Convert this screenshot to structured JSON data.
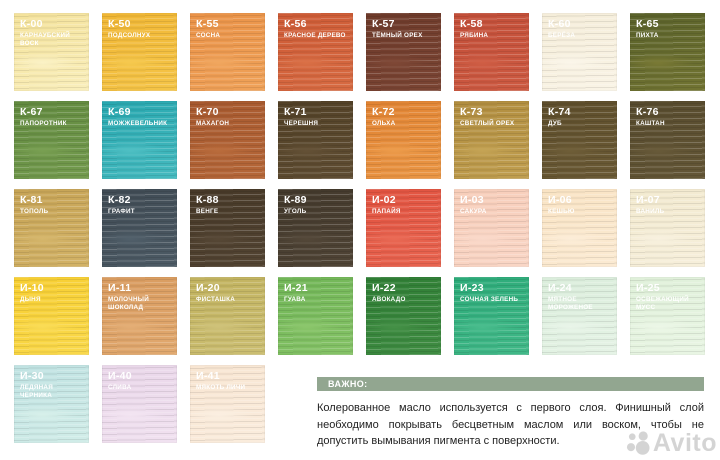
{
  "palette": {
    "swatches": [
      {
        "code": "К-00",
        "name": "КАРНАУБСКИЙ ВОСК",
        "base": "#F4E29A",
        "light": "#FBF2C6"
      },
      {
        "code": "К-50",
        "name": "ПОДСОЛНУХ",
        "base": "#F0B634",
        "light": "#F6C94E"
      },
      {
        "code": "К-55",
        "name": "СОСНА",
        "base": "#EA9247",
        "light": "#F1A75F"
      },
      {
        "code": "К-56",
        "name": "КРАСНОЕ ДЕРЕВО",
        "base": "#CD5A35",
        "light": "#DA7046"
      },
      {
        "code": "К-57",
        "name": "ТЁМНЫЙ ОРЕХ",
        "base": "#6D3A2A",
        "light": "#7F4836"
      },
      {
        "code": "К-58",
        "name": "РЯБИНА",
        "base": "#C24E38",
        "light": "#D05E45"
      },
      {
        "code": "К-60",
        "name": "БЕРЁЗА",
        "base": "#F5EDD9",
        "light": "#FBF6EA"
      },
      {
        "code": "К-65",
        "name": "ПИХТА",
        "base": "#59612A",
        "light": "#7A7A35"
      },
      {
        "code": "К-67",
        "name": "ПАПОРОТНИК",
        "base": "#61893F",
        "light": "#79A052"
      },
      {
        "code": "К-69",
        "name": "МОЖЖЕВЕЛЬНИК",
        "base": "#27A7AF",
        "light": "#4FC0C4"
      },
      {
        "code": "К-70",
        "name": "МАХАГОН",
        "base": "#A6582E",
        "light": "#BA6C3C"
      },
      {
        "code": "К-71",
        "name": "ЧЕРЕШНЯ",
        "base": "#514026",
        "light": "#645136"
      },
      {
        "code": "К-72",
        "name": "ОЛЬХА",
        "base": "#E18332",
        "light": "#ED9C4B"
      },
      {
        "code": "К-73",
        "name": "СВЕТЛЫЙ ОРЕХ",
        "base": "#B08C3E",
        "light": "#C5A455"
      },
      {
        "code": "К-74",
        "name": "ДУБ",
        "base": "#5D4D2B",
        "light": "#6F5E38"
      },
      {
        "code": "К-76",
        "name": "КАШТАН",
        "base": "#564A2D",
        "light": "#685A39"
      },
      {
        "code": "К-81",
        "name": "ТОПОЛЬ",
        "base": "#C6A355",
        "light": "#D6B76C"
      },
      {
        "code": "К-82",
        "name": "ГРАФИТ",
        "base": "#3F4A53",
        "light": "#51606B"
      },
      {
        "code": "К-88",
        "name": "ВЕНГЕ",
        "base": "#463827",
        "light": "#574836"
      },
      {
        "code": "К-89",
        "name": "УГОЛЬ",
        "base": "#42382B",
        "light": "#544839"
      },
      {
        "code": "И-02",
        "name": "ПАПАЙЯ",
        "base": "#E1523F",
        "light": "#EA6A55"
      },
      {
        "code": "И-03",
        "name": "САКУРА",
        "base": "#F7CDB9",
        "light": "#FAD9CA"
      },
      {
        "code": "И-06",
        "name": "КЕШЬЮ",
        "base": "#F9E3C3",
        "light": "#FCEDD8"
      },
      {
        "code": "И-07",
        "name": "ВАНИЛЬ",
        "base": "#F2E9CE",
        "light": "#F8F1DF"
      },
      {
        "code": "И-10",
        "name": "ДЫНЯ",
        "base": "#F7CE30",
        "light": "#FADC55"
      },
      {
        "code": "И-11",
        "name": "МОЛОЧНЫЙ ШОКОЛАД",
        "base": "#D89A5E",
        "light": "#E4AE75"
      },
      {
        "code": "И-20",
        "name": "ФИСТАШКА",
        "base": "#C1B25E",
        "light": "#CFC279"
      },
      {
        "code": "И-21",
        "name": "ГУАВА",
        "base": "#70B556",
        "light": "#8CC76C"
      },
      {
        "code": "И-22",
        "name": "АВОКАДО",
        "base": "#2E7D34",
        "light": "#459147"
      },
      {
        "code": "И-23",
        "name": "СОЧНАЯ ЗЕЛЕНЬ",
        "base": "#2BAA78",
        "light": "#49BD8D"
      },
      {
        "code": "И-24",
        "name": "МЯТНОЕ МОРОЖЕНОЕ",
        "base": "#DAEDDB",
        "light": "#E9F5E9"
      },
      {
        "code": "И-25",
        "name": "ОСВЕЖАЮЩИЙ МУСС",
        "base": "#DFF0D9",
        "light": "#ECF7E7"
      },
      {
        "code": "И-30",
        "name": "ЛЕДЯНАЯ ЧЕРНИКА",
        "base": "#BFE2E2",
        "light": "#D7F0EA"
      },
      {
        "code": "И-40",
        "name": "СЛИВА",
        "base": "#E9D6E9",
        "light": "#F3E5F2"
      },
      {
        "code": "И-41",
        "name": "МЯКОТЬ ЛИЧИ",
        "base": "#F8E5D1",
        "light": "#FBEFE1"
      }
    ]
  },
  "important": {
    "title": "ВАЖНО:",
    "text": "Колерованное масло используется с первого слоя. Финишный слой необходимо покрывать бесцветным маслом или воском, чтобы не допустить вымывания пигмента с поверхности."
  },
  "watermark": {
    "label": "Avito"
  },
  "colors": {
    "important_bar": "#92A690",
    "body_text": "#1F1F1F",
    "watermark_gray": "#ABABAB"
  }
}
